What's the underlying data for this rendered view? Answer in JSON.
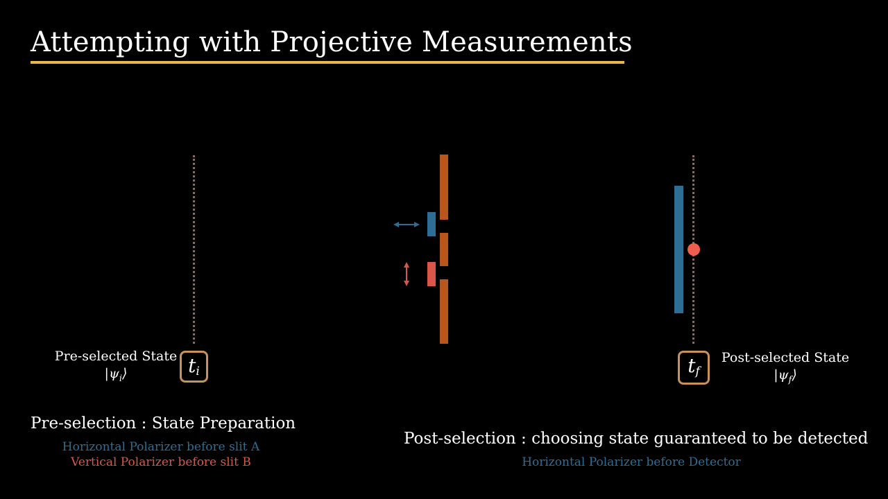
{
  "title": "Attempting with Projective Measurements",
  "colors": {
    "accent_underline": "#e8b84a",
    "barrier": "#b8561e",
    "horizontal_polarizer": "#2e6e94",
    "vertical_polarizer": "#d9574a",
    "time_box_border": "#c8925a",
    "timeline_dots": "#8a6a62",
    "detection_dot": "#ee5f4f"
  },
  "pre": {
    "time_label": "t",
    "time_sub": "i",
    "state_label": "Pre-selected State",
    "ket_symbol": "ψ",
    "ket_sub": "i",
    "section_title": "Pre-selection : State Preparation",
    "note_horizontal": "Horizontal Polarizer before slit A",
    "note_vertical": "Vertical Polarizer before slit B"
  },
  "post": {
    "time_label": "t",
    "time_sub": "f",
    "state_label": "Post-selected State",
    "ket_symbol": "ψ",
    "ket_sub": "f",
    "section_title": "Post-selection : choosing state guaranteed to be detected",
    "note_detector": "Horizontal Polarizer before Detector"
  },
  "icons": {
    "horizontal_arrow": "double-arrow-horizontal-icon",
    "vertical_arrow": "double-arrow-vertical-icon"
  }
}
